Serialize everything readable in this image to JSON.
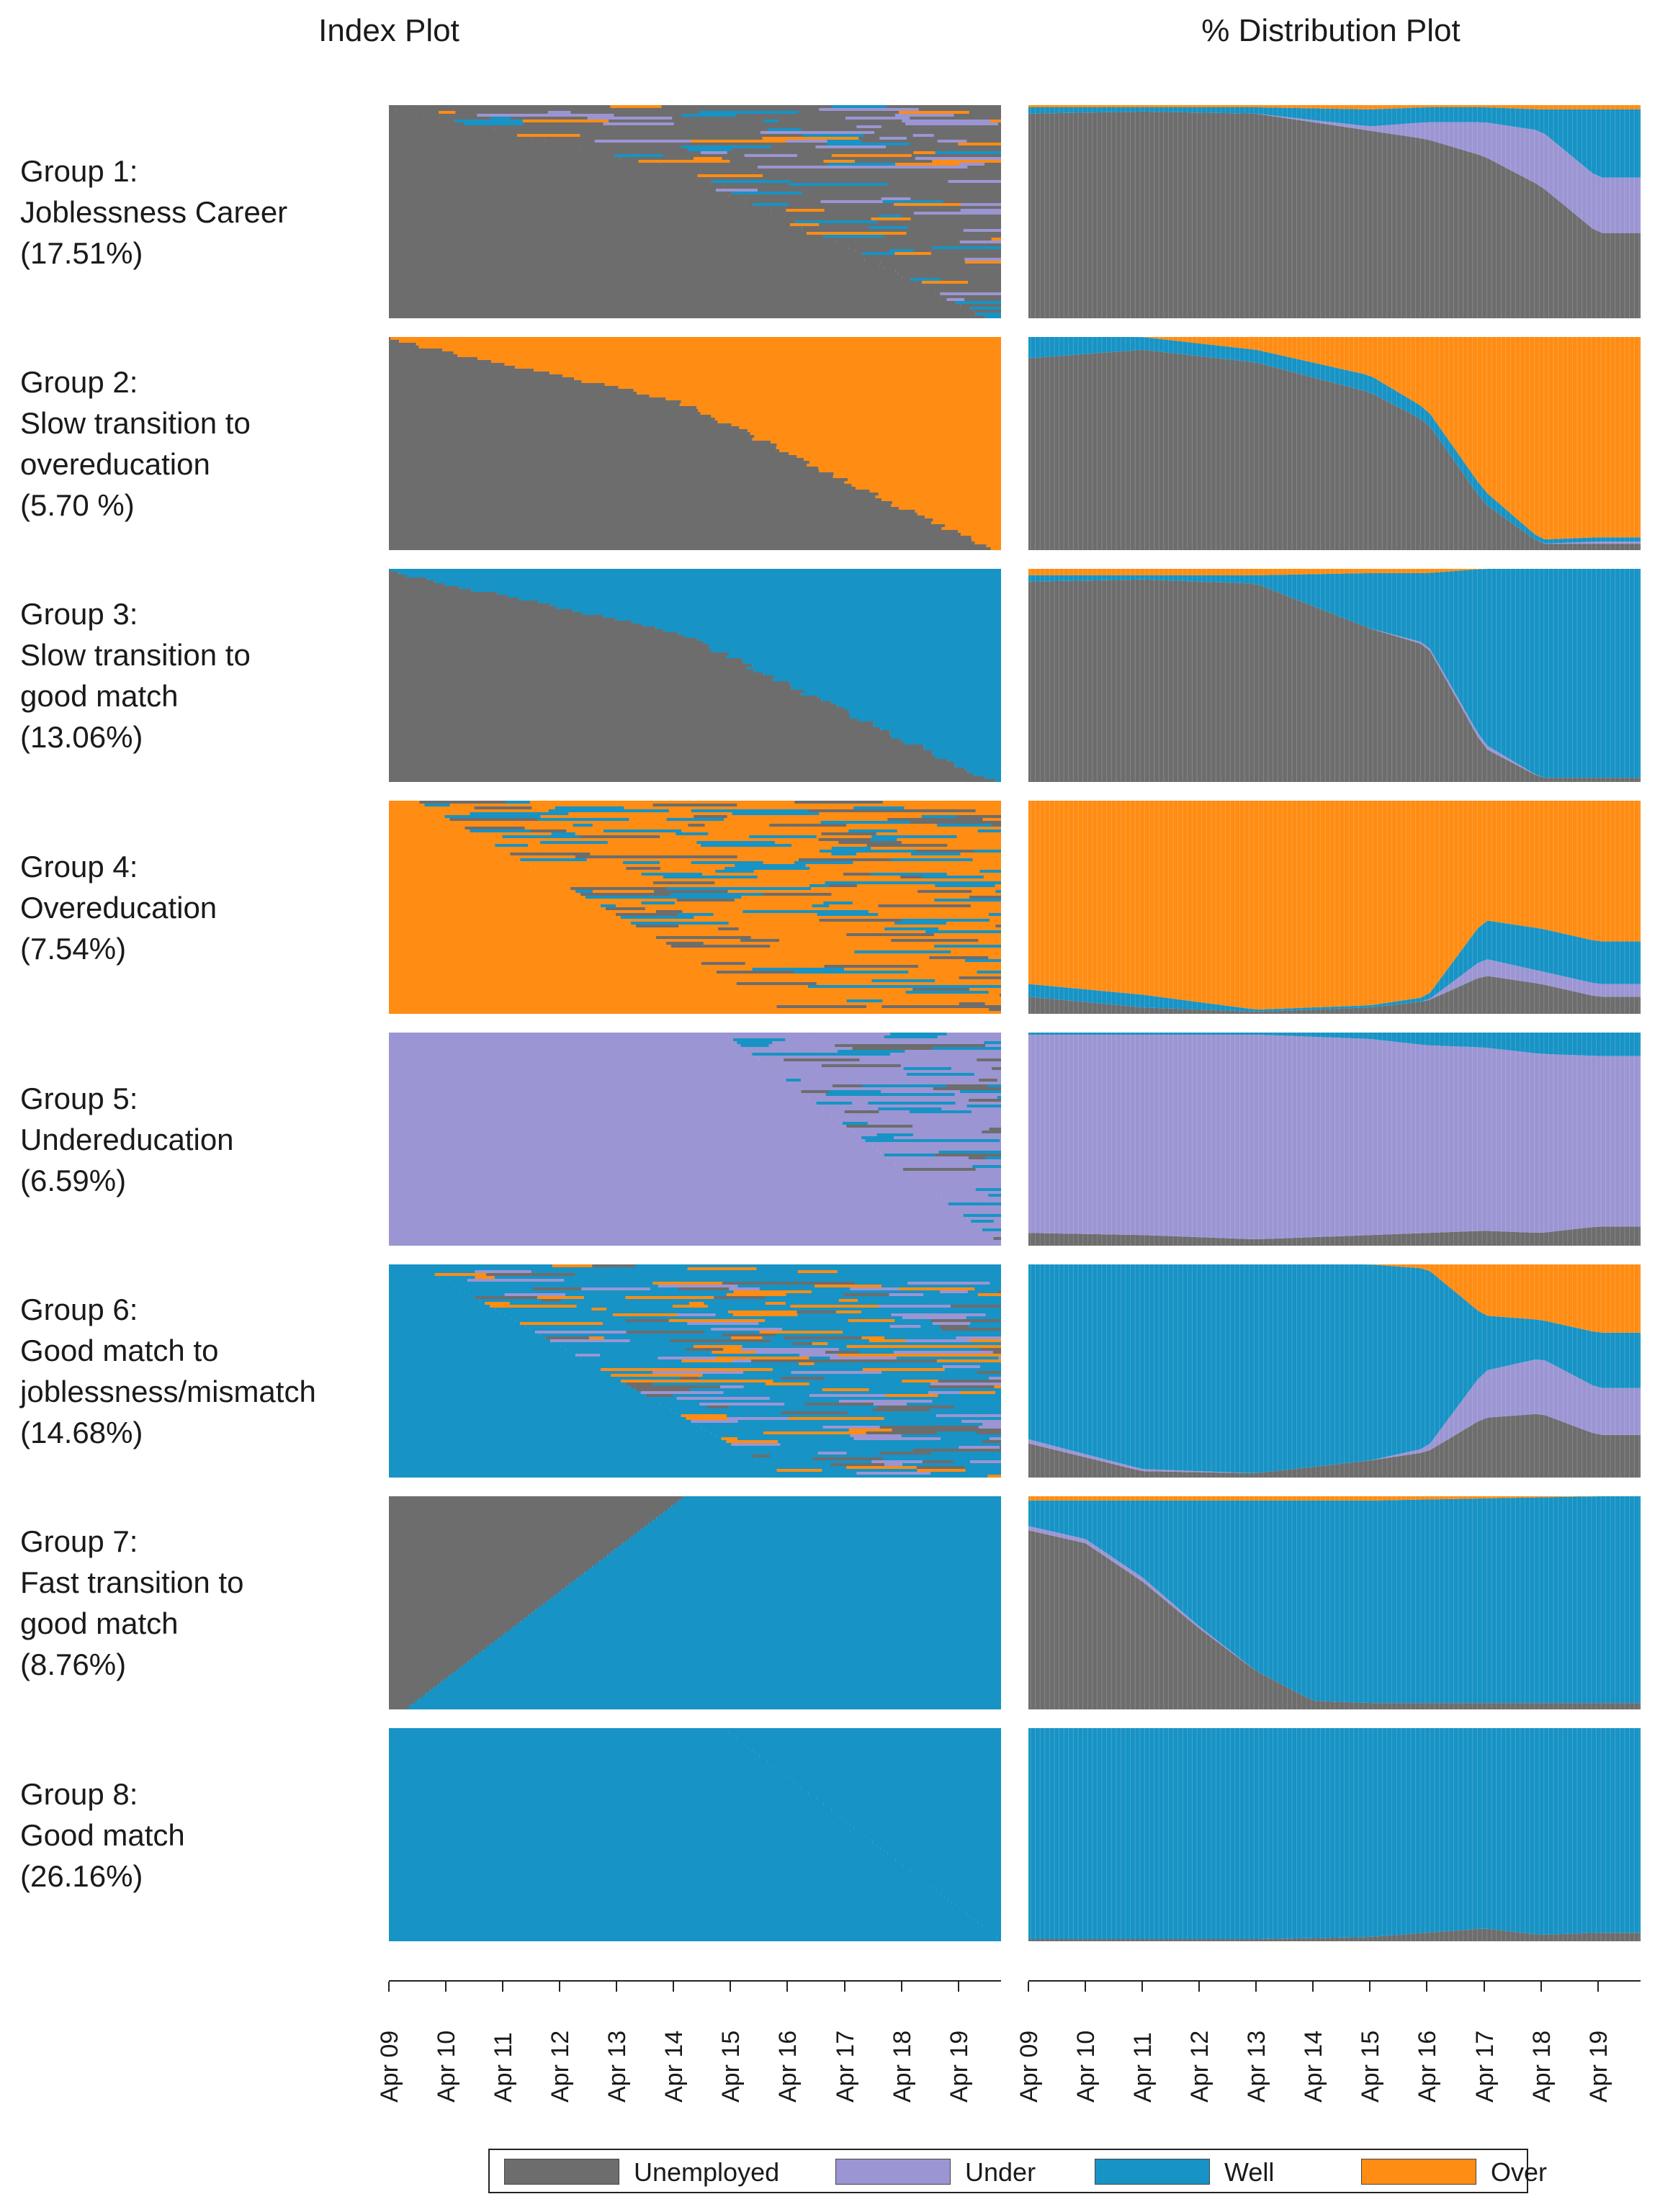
{
  "titles": {
    "index": "Index Plot",
    "distribution": "% Distribution Plot"
  },
  "colors": {
    "Unemployed": "#6d6d6d",
    "Under": "#9b95d3",
    "Well": "#1793c5",
    "Over": "#ff8c13"
  },
  "states": [
    "Unemployed",
    "Under",
    "Well",
    "Over"
  ],
  "groups": [
    {
      "lines": [
        "Group 1:",
        "Joblessness Career",
        "(17.51%)"
      ]
    },
    {
      "lines": [
        "Group 2:",
        "Slow transition to",
        "overeducation",
        "(5.70 %)"
      ]
    },
    {
      "lines": [
        "Group 3:",
        "Slow transition to",
        "good match",
        "(13.06%)"
      ]
    },
    {
      "lines": [
        "Group 4:",
        "Overeducation",
        "(7.54%)"
      ]
    },
    {
      "lines": [
        "Group 5:",
        "Undereducation",
        "(6.59%)"
      ]
    },
    {
      "lines": [
        "Group 6:",
        "Good match to",
        "joblessness/mismatch",
        "(14.68%)"
      ]
    },
    {
      "lines": [
        "Group 7:",
        "Fast transition to",
        "good match",
        "(8.76%)"
      ]
    },
    {
      "lines": [
        "Group 8:",
        "Good match",
        "(26.16%)"
      ]
    }
  ],
  "x_ticks": [
    "Apr 09",
    "Apr 10",
    "Apr 11",
    "Apr 12",
    "Apr 13",
    "Apr 14",
    "Apr 15",
    "Apr 16",
    "Apr 17",
    "Apr 18",
    "Apr 19"
  ],
  "legend": [
    {
      "label": "Unemployed",
      "state": "Unemployed"
    },
    {
      "label": "Under",
      "state": "Under"
    },
    {
      "label": "Well",
      "state": "Well"
    },
    {
      "label": "Over",
      "state": "Over"
    }
  ],
  "chart_data": {
    "type": "area",
    "x_unit": "month",
    "x_range": [
      "Apr 09",
      "Dec 19"
    ],
    "ylim": [
      0,
      100
    ],
    "note_values": "% share of each state, read at the tick months",
    "distribution": [
      {
        "group": "Group 1",
        "x": [
          "Apr 09",
          "Apr 11",
          "Apr 13",
          "Apr 15",
          "Apr 16",
          "Apr 17",
          "Apr 18",
          "Apr 19"
        ],
        "Unemployed": [
          96,
          97,
          96,
          88,
          84,
          76,
          62,
          40
        ],
        "Under": [
          0,
          0,
          0,
          2,
          8,
          16,
          26,
          26
        ],
        "Well": [
          3,
          2,
          3,
          8,
          7,
          7,
          10,
          32
        ],
        "Over": [
          1,
          1,
          1,
          2,
          1,
          1,
          2,
          2
        ]
      },
      {
        "group": "Group 2",
        "x": [
          "Apr 09",
          "Apr 11",
          "Apr 13",
          "Apr 15",
          "Apr 16",
          "Apr 17",
          "Apr 18",
          "Apr 19"
        ],
        "Unemployed": [
          90,
          94,
          88,
          74,
          60,
          22,
          3,
          3
        ],
        "Under": [
          0,
          0,
          0,
          0,
          0,
          0,
          0,
          1
        ],
        "Well": [
          10,
          6,
          6,
          8,
          6,
          6,
          2,
          2
        ],
        "Over": [
          0,
          0,
          6,
          18,
          34,
          72,
          95,
          94
        ]
      },
      {
        "group": "Group 3",
        "x": [
          "Apr 09",
          "Apr 11",
          "Apr 13",
          "Apr 15",
          "Apr 16",
          "Apr 17",
          "Apr 18",
          "Apr 19"
        ],
        "Unemployed": [
          94,
          95,
          93,
          72,
          64,
          16,
          2,
          2
        ],
        "Under": [
          0,
          0,
          0,
          0,
          1,
          2,
          0,
          0
        ],
        "Well": [
          3,
          2,
          4,
          26,
          33,
          82,
          98,
          98
        ],
        "Over": [
          3,
          3,
          3,
          2,
          2,
          0,
          0,
          0
        ]
      },
      {
        "group": "Group 4",
        "x": [
          "Apr 09",
          "Apr 11",
          "Apr 13",
          "Apr 15",
          "Apr 16",
          "Apr 17",
          "Apr 18",
          "Apr 19"
        ],
        "Unemployed": [
          8,
          3,
          1,
          3,
          6,
          18,
          14,
          8
        ],
        "Under": [
          0,
          0,
          0,
          0,
          0,
          8,
          6,
          6
        ],
        "Well": [
          6,
          6,
          1,
          1,
          2,
          18,
          20,
          20
        ],
        "Over": [
          86,
          91,
          98,
          96,
          92,
          56,
          60,
          66
        ]
      },
      {
        "group": "Group 5",
        "x": [
          "Apr 09",
          "Apr 11",
          "Apr 13",
          "Apr 15",
          "Apr 16",
          "Apr 17",
          "Apr 18",
          "Apr 19"
        ],
        "Unemployed": [
          6,
          5,
          3,
          5,
          6,
          7,
          6,
          9
        ],
        "Under": [
          93,
          94,
          96,
          92,
          88,
          86,
          84,
          80
        ],
        "Well": [
          1,
          1,
          1,
          3,
          6,
          7,
          10,
          11
        ],
        "Over": [
          0,
          0,
          0,
          0,
          0,
          0,
          0,
          0
        ]
      },
      {
        "group": "Group 6",
        "x": [
          "Apr 09",
          "Apr 11",
          "Apr 13",
          "Apr 15",
          "Apr 16",
          "Apr 17",
          "Apr 18",
          "Apr 19"
        ],
        "Unemployed": [
          16,
          3,
          2,
          8,
          12,
          28,
          30,
          20
        ],
        "Under": [
          2,
          1,
          0,
          0,
          2,
          22,
          26,
          22
        ],
        "Well": [
          82,
          96,
          98,
          92,
          84,
          26,
          18,
          26
        ],
        "Over": [
          0,
          0,
          0,
          0,
          2,
          24,
          26,
          32
        ]
      },
      {
        "group": "Group 7",
        "x": [
          "Apr 09",
          "Apr 10",
          "Apr 11",
          "Apr 12",
          "Apr 13",
          "Apr 14",
          "Apr 15",
          "Apr 19"
        ],
        "Unemployed": [
          84,
          78,
          60,
          38,
          18,
          4,
          3,
          3
        ],
        "Under": [
          2,
          2,
          2,
          1,
          0,
          0,
          0,
          0
        ],
        "Well": [
          12,
          18,
          36,
          59,
          80,
          94,
          95,
          97
        ],
        "Over": [
          2,
          2,
          2,
          2,
          2,
          2,
          2,
          0
        ]
      },
      {
        "group": "Group 8",
        "x": [
          "Apr 09",
          "Apr 11",
          "Apr 13",
          "Apr 15",
          "Apr 16",
          "Apr 17",
          "Apr 18",
          "Apr 19"
        ],
        "Unemployed": [
          1,
          1,
          1,
          2,
          4,
          6,
          3,
          4
        ],
        "Under": [
          0,
          0,
          0,
          0,
          0,
          0,
          0,
          0
        ],
        "Well": [
          99,
          99,
          99,
          98,
          96,
          94,
          97,
          96
        ],
        "Over": [
          0,
          0,
          0,
          0,
          0,
          0,
          0,
          0
        ]
      }
    ],
    "index_plot": [
      {
        "group": "Group 1",
        "start": "Unemployed",
        "end": [
          "Unemployed",
          "Under",
          "Well",
          "Over"
        ],
        "transition_shape": "rising"
      },
      {
        "group": "Group 2",
        "start": "Unemployed",
        "end": [
          "Over"
        ],
        "transition_shape": "rising"
      },
      {
        "group": "Group 3",
        "start": "Unemployed",
        "end": [
          "Well"
        ],
        "transition_shape": "rising"
      },
      {
        "group": "Group 4",
        "start": "Over",
        "end": [
          "Over",
          "Unemployed",
          "Well"
        ],
        "transition_shape": "falling"
      },
      {
        "group": "Group 5",
        "start": "Under",
        "end": [
          "Under",
          "Well",
          "Unemployed"
        ],
        "transition_shape": "flat"
      },
      {
        "group": "Group 6",
        "start": "Well",
        "end": [
          "Well",
          "Under",
          "Over",
          "Unemployed"
        ],
        "transition_shape": "falling"
      },
      {
        "group": "Group 7",
        "start": "Unemployed",
        "end": [
          "Well"
        ],
        "transition_shape": "rising-fast"
      },
      {
        "group": "Group 8",
        "start": "Well",
        "end": [
          "Well"
        ],
        "transition_shape": "flat"
      }
    ]
  }
}
